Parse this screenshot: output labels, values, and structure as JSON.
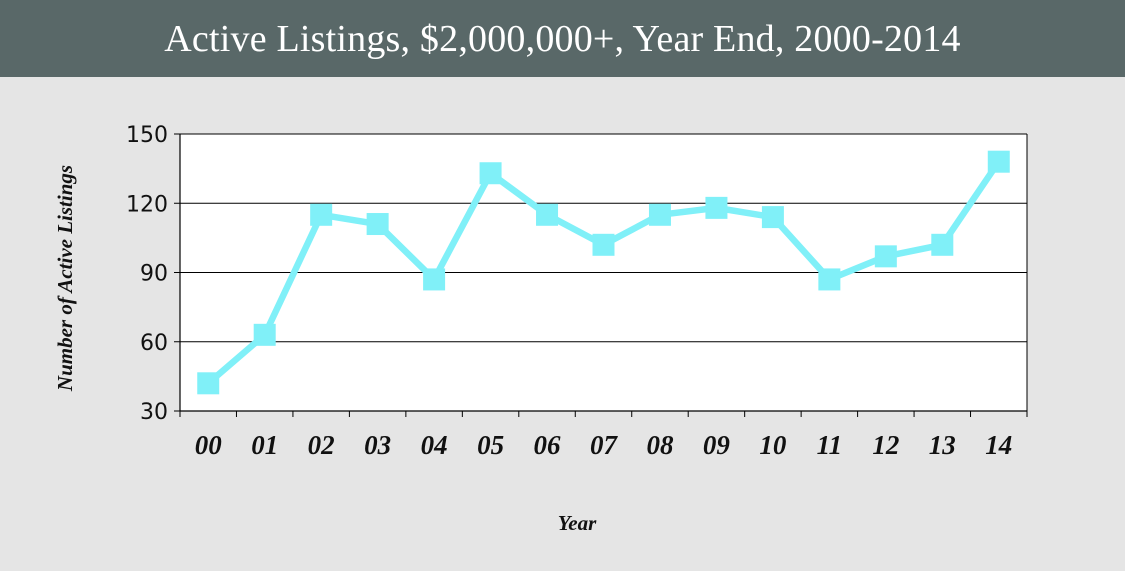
{
  "header": {
    "title": "Active Listings, $2,000,000+, Year End, 2000-2014"
  },
  "chart_data": {
    "type": "line",
    "title": "Active Listings, $2,000,000+, Year End, 2000-2014",
    "xlabel": "Year",
    "ylabel": "Number of  Active Listings",
    "categories": [
      "00",
      "01",
      "02",
      "03",
      "04",
      "05",
      "06",
      "07",
      "08",
      "09",
      "10",
      "11",
      "12",
      "13",
      "14"
    ],
    "series": [
      {
        "values": [
          42,
          63,
          115,
          111,
          87,
          133,
          115,
          102,
          115,
          118,
          114,
          87,
          97,
          102,
          138
        ]
      }
    ],
    "ylim": [
      30,
      150
    ],
    "yticks": [
      30,
      60,
      90,
      120,
      150
    ],
    "grid": true,
    "legend": "none",
    "colors": {
      "line": "#80f0f8",
      "marker": "#80f0f8",
      "header_background": "#596868",
      "page_background": "#e5e5e5",
      "plot_background": "#ffffff"
    }
  }
}
